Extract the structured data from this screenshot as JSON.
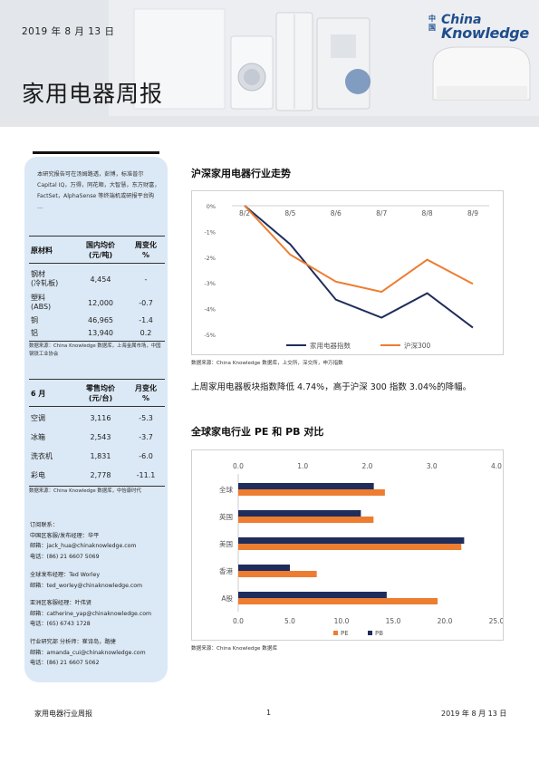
{
  "header": {
    "date": "2019 年 8 月 13 日",
    "title": "家用电器周报",
    "logo": {
      "mark": "中国",
      "word1": "China",
      "word2": "Knowledge",
      "color": "#1f4e8c"
    }
  },
  "sidebar": {
    "intro": "本研究报告可在汤姆路透，彭博，标准普尔 Capital IQ，万得，同花顺，大智慧，东方财富，FactSet，AlphaSense 等终端机或研报平台购",
    "intro_ellipsis": "…",
    "materials": {
      "headers": [
        "原材料",
        "国内均价\n(元/吨)",
        "周变化\n%"
      ],
      "rows": [
        {
          "name": "钢材\n(冷轧板)",
          "price": "4,454",
          "change": "-"
        },
        {
          "name": "塑料\n(ABS)",
          "price": "12,000",
          "change": "-0.7"
        },
        {
          "name": "铜",
          "price": "46,965",
          "change": "-1.4"
        },
        {
          "name": "铝",
          "price": "13,940",
          "change": "0.2"
        }
      ],
      "source": "数据来源：China Knowledge 数据库，上海金属市场，中国钢铁工业协会"
    },
    "retail": {
      "headers": [
        "6 月",
        "零售均价\n(元/台)",
        "月变化\n%"
      ],
      "rows": [
        {
          "name": "空调",
          "price": "3,116",
          "change": "-5.3"
        },
        {
          "name": "冰箱",
          "price": "2,543",
          "change": "-3.7"
        },
        {
          "name": "洗衣机",
          "price": "1,831",
          "change": "-6.0"
        },
        {
          "name": "彩电",
          "price": "2,778",
          "change": "-11.1"
        }
      ],
      "source": "数据来源：China Knowledge 数据库，中怡康时代"
    },
    "contacts": [
      "订阅联系：\n中国区客服/发布经理：华平\n邮箱：jack_hua@chinaknowledge.com\n电话：(86) 21 6607 5069",
      "全球发布经理：Ted Worley\n邮箱：ted_worley@chinaknowledge.com",
      "亚洲区客服经理：叶伟贤\n邮箱：catherine_yap@chinaknowledge.com\n电话：(65) 6743 1728",
      "行业研究部 分析师：崔诗岛，路捷\n邮箱：amanda_cui@chinaknowledge.com\n电话：(86) 21 6607 5062"
    ]
  },
  "section1": {
    "title": "沪深家用电器行业走势",
    "source": "数据来源：China Knowledge 数据库，上交所，深交所，申万指数",
    "paragraph": "上周家用电器板块指数降低 4.74%，高于沪深 300 指数 3.04%的降幅。"
  },
  "section2": {
    "title": "全球家电行业 PE 和 PB 对比",
    "source": "数据来源：China Knowledge 数据库"
  },
  "colors": {
    "navy": "#1f2d5c",
    "orange": "#ed7d31",
    "sidebar": "#dbe8f5"
  },
  "chart_data": [
    {
      "type": "line",
      "x": [
        "8/2",
        "8/5",
        "8/6",
        "8/7",
        "8/8",
        "8/9"
      ],
      "series": [
        {
          "name": "家用电器指数",
          "values": [
            0,
            -1.5,
            -3.65,
            -4.35,
            -3.4,
            -4.74
          ],
          "color": "#1f2d5c"
        },
        {
          "name": "沪深300",
          "values": [
            0,
            -1.9,
            -2.95,
            -3.35,
            -2.1,
            -3.04
          ],
          "color": "#ed7d31"
        }
      ],
      "y_ticks": [
        "0%",
        "-1%",
        "-2%",
        "-3%",
        "-4%",
        "-5%"
      ],
      "ylim": [
        -5,
        0
      ],
      "legend": "bottom",
      "grid": false
    },
    {
      "type": "bar",
      "orientation": "horizontal",
      "categories": [
        "全球",
        "英国",
        "美国",
        "香港",
        "A股"
      ],
      "series": [
        {
          "name": "PE",
          "values": [
            14.2,
            13.1,
            21.6,
            7.6,
            19.3
          ],
          "color": "#ed7d31",
          "axis": "bottom"
        },
        {
          "name": "PB",
          "values": [
            2.1,
            1.9,
            3.5,
            0.8,
            2.3
          ],
          "color": "#1f2d5c",
          "axis": "top"
        }
      ],
      "top_axis": {
        "ticks": [
          "0.0",
          "1.0",
          "2.0",
          "3.0",
          "4.0"
        ],
        "range": [
          0,
          4
        ]
      },
      "bottom_axis": {
        "ticks": [
          "0.0",
          "5.0",
          "10.0",
          "15.0",
          "20.0",
          "25.0"
        ],
        "range": [
          0,
          25
        ]
      },
      "legend": "bottom",
      "grid": false
    }
  ],
  "footer": {
    "left": "家用电器行业周报",
    "page": "1",
    "right": "2019 年 8 月 13 日"
  }
}
